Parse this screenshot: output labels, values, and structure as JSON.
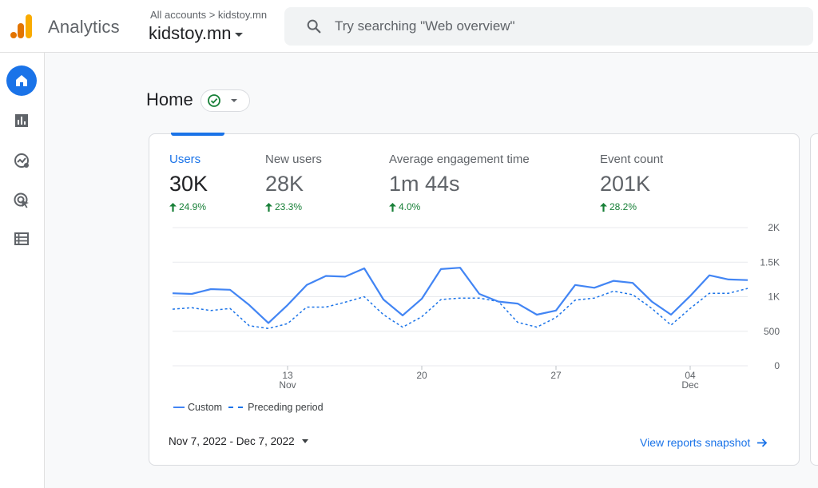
{
  "app": {
    "name": "Analytics",
    "account_crumb": "All accounts > kidstoy.mn",
    "account_name": "kidstoy.mn",
    "brand_colors": [
      "#f9ab00",
      "#e37400"
    ]
  },
  "search": {
    "placeholder": "Try searching \"Web overview\""
  },
  "nav": {
    "items": [
      {
        "name": "home",
        "icon": "home-icon",
        "active": true
      },
      {
        "name": "reports",
        "icon": "bar-chart-icon",
        "active": false
      },
      {
        "name": "explore",
        "icon": "explore-icon",
        "active": false
      },
      {
        "name": "advertising",
        "icon": "advertising-icon",
        "active": false
      },
      {
        "name": "configure",
        "icon": "list-icon",
        "active": false
      }
    ]
  },
  "page": {
    "title": "Home"
  },
  "metrics": [
    {
      "label": "Users",
      "value": "30K",
      "change": "24.9%",
      "active": true
    },
    {
      "label": "New users",
      "value": "28K",
      "change": "23.3%",
      "active": false
    },
    {
      "label": "Average engagement time",
      "value": "1m 44s",
      "change": "4.0%",
      "active": false
    },
    {
      "label": "Event count",
      "value": "201K",
      "change": "28.2%",
      "active": false
    }
  ],
  "chart_data": {
    "type": "line",
    "x_ticks": [
      {
        "day": "13",
        "month": "Nov"
      },
      {
        "day": "20",
        "month": ""
      },
      {
        "day": "27",
        "month": ""
      },
      {
        "day": "04",
        "month": "Dec"
      }
    ],
    "y_ticks": [
      "2K",
      "1.5K",
      "1K",
      "500",
      "0"
    ],
    "ylim": [
      0,
      2000
    ],
    "series": [
      {
        "name": "Custom",
        "style": "solid",
        "color": "#4285f4",
        "values": [
          1050,
          1040,
          1110,
          1100,
          880,
          620,
          880,
          1170,
          1300,
          1290,
          1410,
          960,
          730,
          970,
          1400,
          1420,
          1040,
          930,
          900,
          740,
          800,
          1170,
          1130,
          1230,
          1200,
          930,
          740,
          1010,
          1310,
          1250,
          1240
        ]
      },
      {
        "name": "Preceding period",
        "style": "dashed",
        "color": "#1a73e8",
        "values": [
          820,
          840,
          800,
          830,
          580,
          540,
          610,
          850,
          850,
          920,
          1000,
          740,
          560,
          710,
          960,
          980,
          980,
          930,
          630,
          560,
          700,
          950,
          980,
          1080,
          1030,
          830,
          590,
          830,
          1050,
          1050,
          1120
        ]
      }
    ]
  },
  "legend": {
    "custom": "Custom",
    "preceding": "Preceding period"
  },
  "footer": {
    "date_range": "Nov 7, 2022 - Dec 7, 2022",
    "snapshot_link": "View reports snapshot"
  }
}
